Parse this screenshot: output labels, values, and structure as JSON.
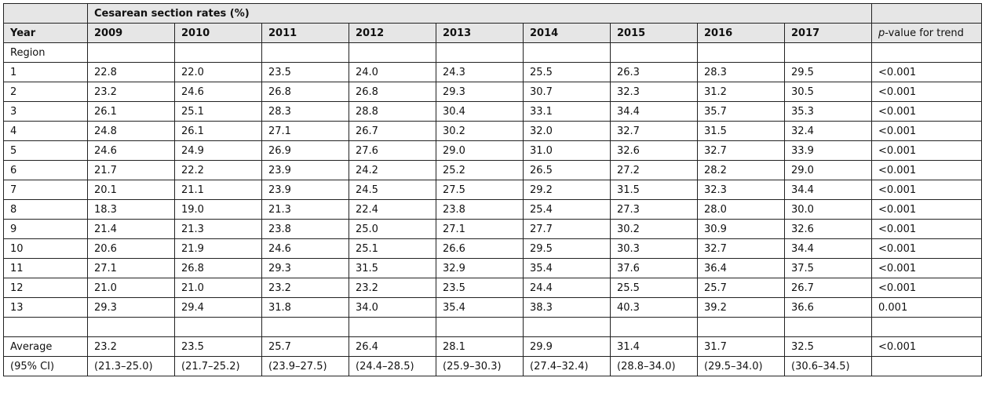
{
  "table": {
    "group_header": "Cesarean section rates (%)",
    "year_label": "Year",
    "years": [
      "2009",
      "2010",
      "2011",
      "2012",
      "2013",
      "2014",
      "2015",
      "2016",
      "2017"
    ],
    "pvalue_header_italic": "p",
    "pvalue_header_rest": "-value for trend",
    "region_label": "Region",
    "rows": [
      {
        "region": "1",
        "values": [
          "22.8",
          "22.0",
          "23.5",
          "24.0",
          "24.3",
          "25.5",
          "26.3",
          "28.3",
          "29.5"
        ],
        "p": "<0.001"
      },
      {
        "region": "2",
        "values": [
          "23.2",
          "24.6",
          "26.8",
          "26.8",
          "29.3",
          "30.7",
          "32.3",
          "31.2",
          "30.5"
        ],
        "p": "<0.001"
      },
      {
        "region": "3",
        "values": [
          "26.1",
          "25.1",
          "28.3",
          "28.8",
          "30.4",
          "33.1",
          "34.4",
          "35.7",
          "35.3"
        ],
        "p": "<0.001"
      },
      {
        "region": "4",
        "values": [
          "24.8",
          "26.1",
          "27.1",
          "26.7",
          "30.2",
          "32.0",
          "32.7",
          "31.5",
          "32.4"
        ],
        "p": "<0.001"
      },
      {
        "region": "5",
        "values": [
          "24.6",
          "24.9",
          "26.9",
          "27.6",
          "29.0",
          "31.0",
          "32.6",
          "32.7",
          "33.9"
        ],
        "p": "<0.001"
      },
      {
        "region": "6",
        "values": [
          "21.7",
          "22.2",
          "23.9",
          "24.2",
          "25.2",
          "26.5",
          "27.2",
          "28.2",
          "29.0"
        ],
        "p": "<0.001"
      },
      {
        "region": "7",
        "values": [
          "20.1",
          "21.1",
          "23.9",
          "24.5",
          "27.5",
          "29.2",
          "31.5",
          "32.3",
          "34.4"
        ],
        "p": "<0.001"
      },
      {
        "region": "8",
        "values": [
          "18.3",
          "19.0",
          "21.3",
          "22.4",
          "23.8",
          "25.4",
          "27.3",
          "28.0",
          "30.0"
        ],
        "p": "<0.001"
      },
      {
        "region": "9",
        "values": [
          "21.4",
          "21.3",
          "23.8",
          "25.0",
          "27.1",
          "27.7",
          "30.2",
          "30.9",
          "32.6"
        ],
        "p": "<0.001"
      },
      {
        "region": "10",
        "values": [
          "20.6",
          "21.9",
          "24.6",
          "25.1",
          "26.6",
          "29.5",
          "30.3",
          "32.7",
          "34.4"
        ],
        "p": "<0.001"
      },
      {
        "region": "11",
        "values": [
          "27.1",
          "26.8",
          "29.3",
          "31.5",
          "32.9",
          "35.4",
          "37.6",
          "36.4",
          "37.5"
        ],
        "p": "<0.001"
      },
      {
        "region": "12",
        "values": [
          "21.0",
          "21.0",
          "23.2",
          "23.2",
          "23.5",
          "24.4",
          "25.5",
          "25.7",
          "26.7"
        ],
        "p": "<0.001"
      },
      {
        "region": "13",
        "values": [
          "29.3",
          "29.4",
          "31.8",
          "34.0",
          "35.4",
          "38.3",
          "40.3",
          "39.2",
          "36.6"
        ],
        "p": "0.001"
      }
    ],
    "average": {
      "label": "Average",
      "values": [
        "23.2",
        "23.5",
        "25.7",
        "26.4",
        "28.1",
        "29.9",
        "31.4",
        "31.7",
        "32.5"
      ],
      "p": "<0.001"
    },
    "ci": {
      "label": "(95% CI)",
      "values": [
        "(21.3–25.0)",
        "(21.7–25.2)",
        "(23.9–27.5)",
        "(24.4–28.5)",
        "(25.9–30.3)",
        "(27.4–32.4)",
        "(28.8–34.0)",
        "(29.5–34.0)",
        "(30.6–34.5)"
      ],
      "p": ""
    }
  }
}
